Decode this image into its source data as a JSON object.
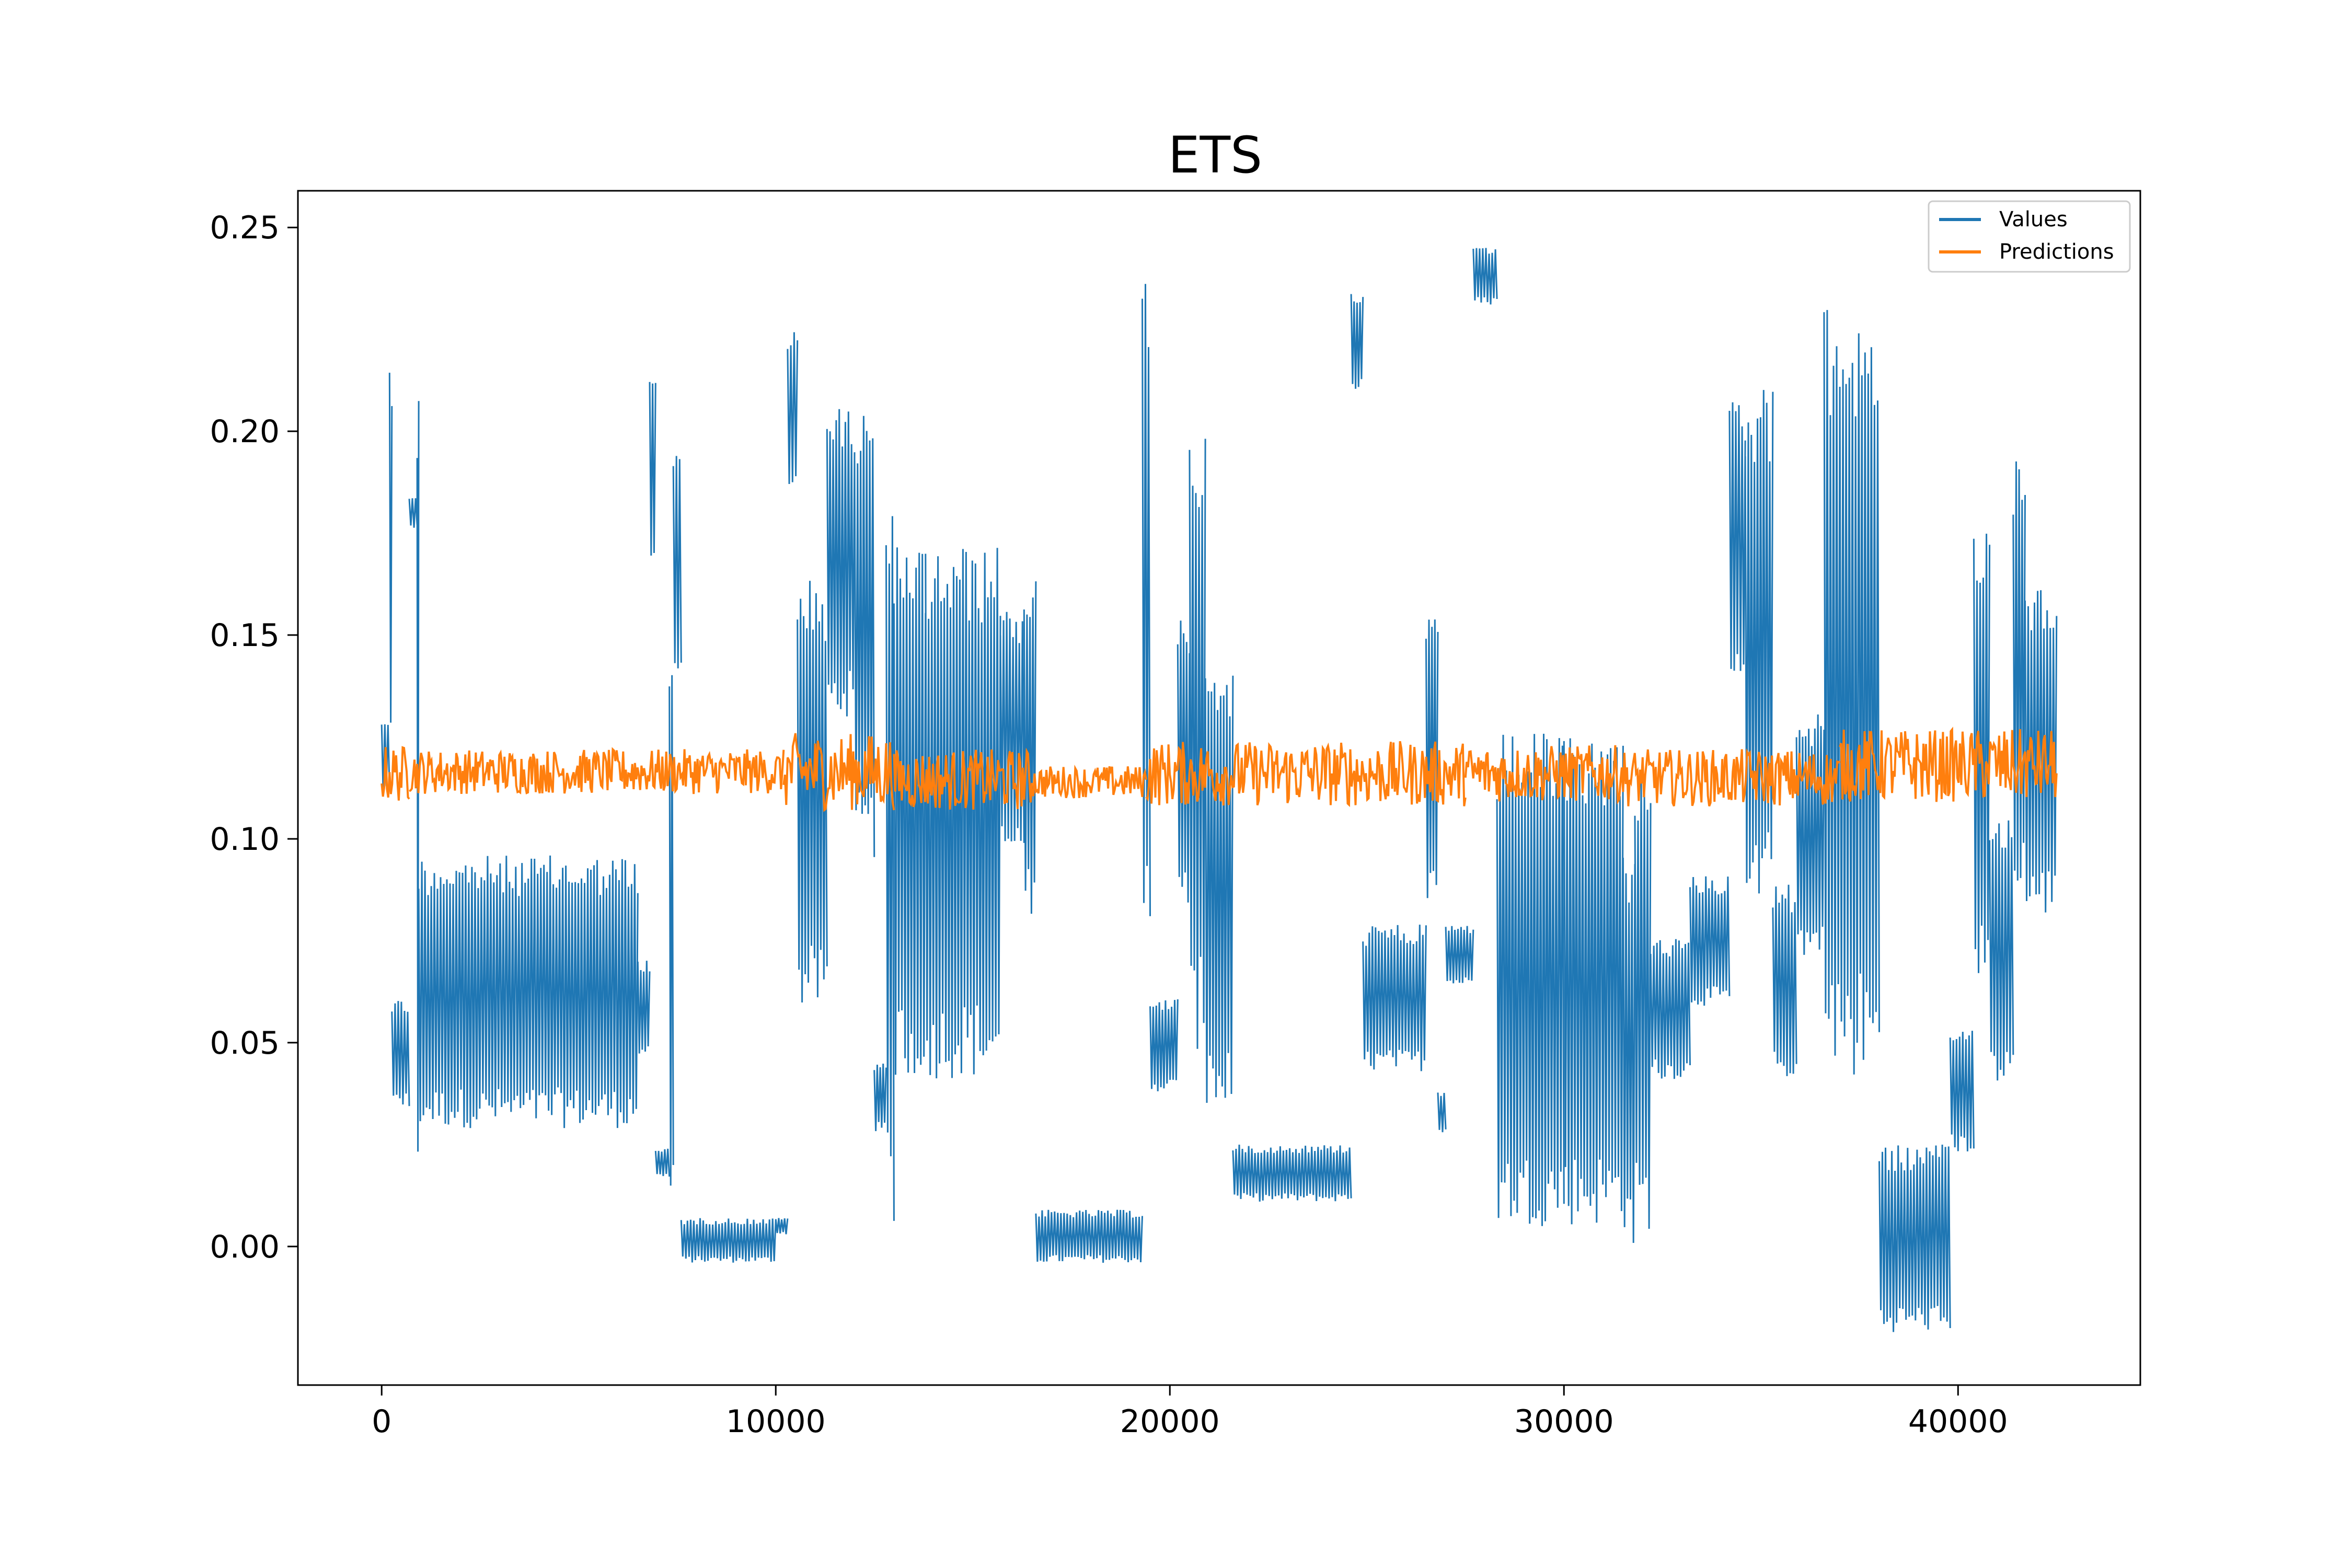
{
  "chart_data": {
    "type": "line",
    "title": "ETS",
    "xlabel": "",
    "ylabel": "",
    "xlim": [
      -2125,
      44625
    ],
    "ylim": [
      -0.034,
      0.259
    ],
    "x_ticks": [
      0,
      10000,
      20000,
      30000,
      40000
    ],
    "x_tick_labels": [
      "0",
      "10000",
      "20000",
      "30000",
      "40000"
    ],
    "y_ticks": [
      0.0,
      0.05,
      0.1,
      0.15,
      0.2,
      0.25
    ],
    "y_tick_labels": [
      "0.00",
      "0.05",
      "0.10",
      "0.15",
      "0.20",
      "0.25"
    ],
    "grid": false,
    "legend_position": "upper-right",
    "series": [
      {
        "name": "Values",
        "color": "#1f77b4",
        "note_segments": "each segment: [x_start, x_end, y_low, y_high] — signal oscillates between low and high inside the segment",
        "segments": [
          [
            0,
            200,
            0.11,
            0.13
          ],
          [
            200,
            260,
            0.115,
            0.217
          ],
          [
            260,
            700,
            0.034,
            0.061
          ],
          [
            700,
            900,
            0.176,
            0.184
          ],
          [
            900,
            940,
            0.01,
            0.221
          ],
          [
            940,
            6500,
            0.029,
            0.096
          ],
          [
            6500,
            6800,
            0.047,
            0.071
          ],
          [
            6800,
            6950,
            0.164,
            0.214
          ],
          [
            6950,
            7300,
            0.017,
            0.024
          ],
          [
            7300,
            7400,
            0.005,
            0.148
          ],
          [
            7400,
            7600,
            0.138,
            0.197
          ],
          [
            7600,
            10000,
            -0.004,
            0.007
          ],
          [
            10000,
            10300,
            0.003,
            0.007
          ],
          [
            10300,
            10550,
            0.184,
            0.225
          ],
          [
            10550,
            11300,
            0.058,
            0.164
          ],
          [
            11300,
            12000,
            0.13,
            0.206
          ],
          [
            12000,
            12500,
            0.095,
            0.206
          ],
          [
            12500,
            12800,
            0.028,
            0.045
          ],
          [
            12800,
            13000,
            0.0,
            0.19
          ],
          [
            13000,
            13800,
            0.041,
            0.172
          ],
          [
            13800,
            15700,
            0.041,
            0.172
          ],
          [
            15700,
            16300,
            0.095,
            0.157
          ],
          [
            16300,
            16600,
            0.08,
            0.167
          ],
          [
            16600,
            19300,
            -0.004,
            0.009
          ],
          [
            19300,
            19500,
            0.073,
            0.244
          ],
          [
            19500,
            20200,
            0.038,
            0.061
          ],
          [
            20200,
            20500,
            0.082,
            0.155
          ],
          [
            20500,
            20900,
            0.048,
            0.202
          ],
          [
            20900,
            21600,
            0.032,
            0.142
          ],
          [
            21600,
            24600,
            0.011,
            0.025
          ],
          [
            24600,
            24900,
            0.21,
            0.235
          ],
          [
            24900,
            26500,
            0.043,
            0.079
          ],
          [
            26500,
            26800,
            0.083,
            0.155
          ],
          [
            26800,
            27000,
            0.028,
            0.038
          ],
          [
            27000,
            27700,
            0.064,
            0.079
          ],
          [
            27700,
            28300,
            0.231,
            0.245
          ],
          [
            28300,
            30000,
            0.005,
            0.126
          ],
          [
            30000,
            31500,
            0.005,
            0.126
          ],
          [
            31500,
            31800,
            -0.002,
            0.096
          ],
          [
            31800,
            32200,
            0.004,
            0.119
          ],
          [
            32200,
            33200,
            0.041,
            0.076
          ],
          [
            33200,
            34200,
            0.059,
            0.091
          ],
          [
            34200,
            34600,
            0.135,
            0.208
          ],
          [
            34600,
            35300,
            0.083,
            0.211
          ],
          [
            35300,
            35900,
            0.041,
            0.089
          ],
          [
            35900,
            36600,
            0.071,
            0.131
          ],
          [
            36600,
            38000,
            0.04,
            0.23
          ],
          [
            38000,
            39800,
            -0.021,
            0.025
          ],
          [
            39800,
            40400,
            0.023,
            0.054
          ],
          [
            40400,
            40800,
            0.062,
            0.18
          ],
          [
            40800,
            41400,
            0.039,
            0.105
          ],
          [
            41400,
            41700,
            0.083,
            0.194
          ],
          [
            41700,
            42500,
            0.081,
            0.163
          ]
        ]
      },
      {
        "name": "Predictions",
        "color": "#ff7f0e",
        "note_segments": "each segment: [x_start, x_end, y_low, y_high] — noisy band around ~0.116",
        "segments": [
          [
            0,
            700,
            0.109,
            0.123
          ],
          [
            700,
            10200,
            0.111,
            0.122
          ],
          [
            10200,
            13000,
            0.107,
            0.126
          ],
          [
            13000,
            16500,
            0.107,
            0.122
          ],
          [
            16500,
            19400,
            0.11,
            0.118
          ],
          [
            19400,
            27500,
            0.108,
            0.124
          ],
          [
            27500,
            31500,
            0.109,
            0.123
          ],
          [
            31500,
            37000,
            0.108,
            0.122
          ],
          [
            37000,
            42500,
            0.109,
            0.127
          ]
        ]
      }
    ]
  }
}
